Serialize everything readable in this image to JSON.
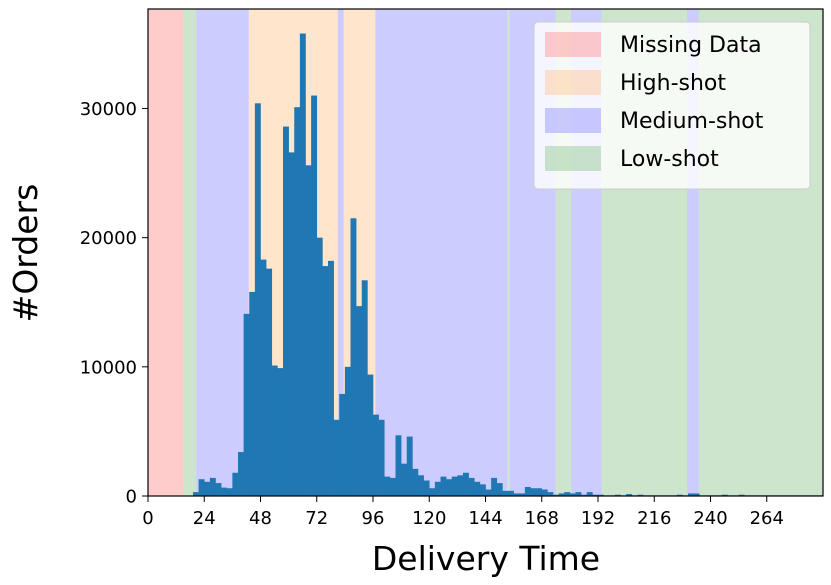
{
  "chart_data": {
    "type": "bar",
    "title": "",
    "xlabel": "Delivery Time",
    "ylabel": "#Orders",
    "xlim": [
      0,
      288
    ],
    "ylim": [
      0,
      37700
    ],
    "xticks": [
      0,
      24,
      48,
      72,
      96,
      120,
      144,
      168,
      192,
      216,
      240,
      264
    ],
    "xtick_labels": [
      "0",
      "24",
      "48",
      "72",
      "96",
      "120",
      "144",
      "168",
      "192",
      "216",
      "240",
      "264"
    ],
    "yticks": [
      0,
      10000,
      20000,
      30000
    ],
    "ytick_labels": [
      "0",
      "10000",
      "20000",
      "30000"
    ],
    "bar_color": "#1f77b4",
    "bin_width": 2.4,
    "bins_start": [
      0,
      2.4,
      4.8,
      7.2,
      9.6,
      12,
      14.4,
      16.8,
      19.2,
      21.6,
      24,
      26.4,
      28.8,
      31.2,
      33.6,
      36,
      38.4,
      40.8,
      43.2,
      45.6,
      48,
      50.4,
      52.8,
      55.2,
      57.6,
      60,
      62.4,
      64.8,
      67.2,
      69.6,
      72,
      74.4,
      76.8,
      79.2,
      81.6,
      84,
      86.4,
      88.8,
      91.2,
      93.6,
      96,
      98.4,
      100.8,
      103.2,
      105.6,
      108,
      110.4,
      112.8,
      115.2,
      117.6,
      120,
      122.4,
      124.8,
      127.2,
      129.6,
      132,
      134.4,
      136.8,
      139.2,
      141.6,
      144,
      146.4,
      148.8,
      151.2,
      153.6,
      156,
      158.4,
      160.8,
      163.2,
      165.6,
      168,
      170.4,
      172.8,
      175.2,
      177.6,
      180,
      182.4,
      184.8,
      187.2,
      189.6,
      192,
      194.4,
      196.8,
      199.2,
      201.6,
      204,
      206.4,
      208.8,
      211.2,
      213.6,
      216,
      218.4,
      220.8,
      223.2,
      225.6,
      228,
      230.4,
      232.8,
      235.2,
      237.6,
      240,
      242.4,
      244.8,
      247.2,
      249.6,
      252,
      254.4,
      256.8,
      259.2,
      261.6,
      264,
      266.4,
      268.8,
      271.2,
      273.6,
      276,
      278.4,
      280.8,
      283.2,
      285.6
    ],
    "values": [
      0,
      0,
      0,
      0,
      0,
      0,
      0,
      0,
      300,
      1300,
      1100,
      1400,
      1000,
      650,
      600,
      1800,
      3400,
      14100,
      15800,
      30400,
      18300,
      17600,
      10100,
      9900,
      28600,
      26600,
      30100,
      35800,
      25600,
      31000,
      20000,
      17800,
      18200,
      5900,
      7900,
      10000,
      21500,
      14700,
      16700,
      9400,
      6300,
      5900,
      1500,
      1400,
      4700,
      2500,
      4600,
      2100,
      1600,
      1200,
      600,
      1100,
      1500,
      1300,
      1500,
      1600,
      1800,
      1400,
      1100,
      900,
      500,
      1400,
      1000,
      400,
      400,
      200,
      200,
      700,
      600,
      600,
      500,
      300,
      100,
      200,
      300,
      200,
      300,
      100,
      300,
      100,
      100,
      50,
      50,
      100,
      50,
      150,
      50,
      100,
      50,
      50,
      50,
      50,
      50,
      50,
      100,
      50,
      200,
      200,
      50,
      50,
      50,
      50,
      100,
      50,
      50,
      100,
      50,
      50,
      50,
      50,
      50,
      50,
      50,
      50,
      50,
      50,
      50,
      50,
      50,
      50
    ],
    "background_regions": [
      {
        "x0": 0,
        "x1": 15,
        "category": 0
      },
      {
        "x0": 15,
        "x1": 20.6,
        "category": 3
      },
      {
        "x0": 20.6,
        "x1": 21.8,
        "category": 2
      },
      {
        "x0": 21.8,
        "x1": 43,
        "category": 2
      },
      {
        "x0": 43,
        "x1": 81,
        "category": 1
      },
      {
        "x0": 81,
        "x1": 83.5,
        "category": 2
      },
      {
        "x0": 83.5,
        "x1": 97,
        "category": 1
      },
      {
        "x0": 97,
        "x1": 153.2,
        "category": 2
      },
      {
        "x0": 153.2,
        "x1": 154.4,
        "category": 3
      },
      {
        "x0": 154.4,
        "x1": 174,
        "category": 2
      },
      {
        "x0": 174,
        "x1": 180.5,
        "category": 3
      },
      {
        "x0": 180.5,
        "x1": 193.5,
        "category": 2
      },
      {
        "x0": 193.5,
        "x1": 230,
        "category": 3
      },
      {
        "x0": 230,
        "x1": 235,
        "category": 2
      },
      {
        "x0": 235,
        "x1": 288,
        "category": 3
      }
    ],
    "legend": {
      "position": "upper right",
      "entries": [
        {
          "label": "Missing Data",
          "color": "#ff9999"
        },
        {
          "label": "High-shot",
          "color": "#ffcc99"
        },
        {
          "label": "Medium-shot",
          "color": "#9999ff"
        },
        {
          "label": "Low-shot",
          "color": "#99cc99"
        }
      ]
    },
    "region_alpha": 0.5
  }
}
